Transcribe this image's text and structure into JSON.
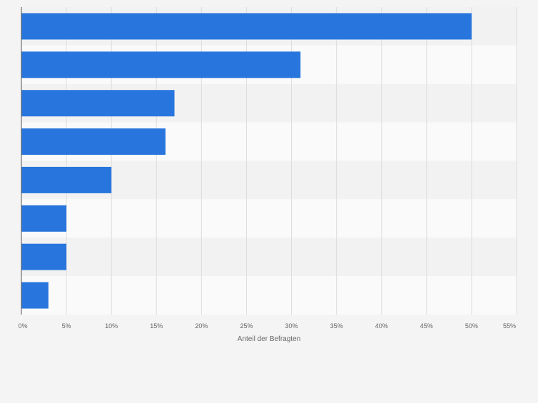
{
  "chart_data": {
    "type": "bar",
    "orientation": "horizontal",
    "title": "",
    "xlabel": "Anteil der Befragten",
    "ylabel": "",
    "categories": [
      "",
      "",
      "",
      "",
      "",
      "",
      "",
      ""
    ],
    "values": [
      50,
      31,
      17,
      16,
      10,
      5,
      5,
      3
    ],
    "xlim": [
      0,
      55
    ],
    "x_ticks": [
      0,
      5,
      10,
      15,
      20,
      25,
      30,
      35,
      40,
      45,
      50,
      55
    ],
    "tick_labels": [
      "0%",
      "5%",
      "10%",
      "15%",
      "20%",
      "25%",
      "30%",
      "35%",
      "40%",
      "45%",
      "50%",
      "55%"
    ],
    "grid": true,
    "legend": "none",
    "colors": {
      "bar": "#2876dd",
      "band_dark": "#f2f2f2",
      "band_light": "#fafafa",
      "background": "#f4f4f4",
      "grid": "#dddddd",
      "axis": "#555555",
      "tick_text": "#666666"
    }
  }
}
